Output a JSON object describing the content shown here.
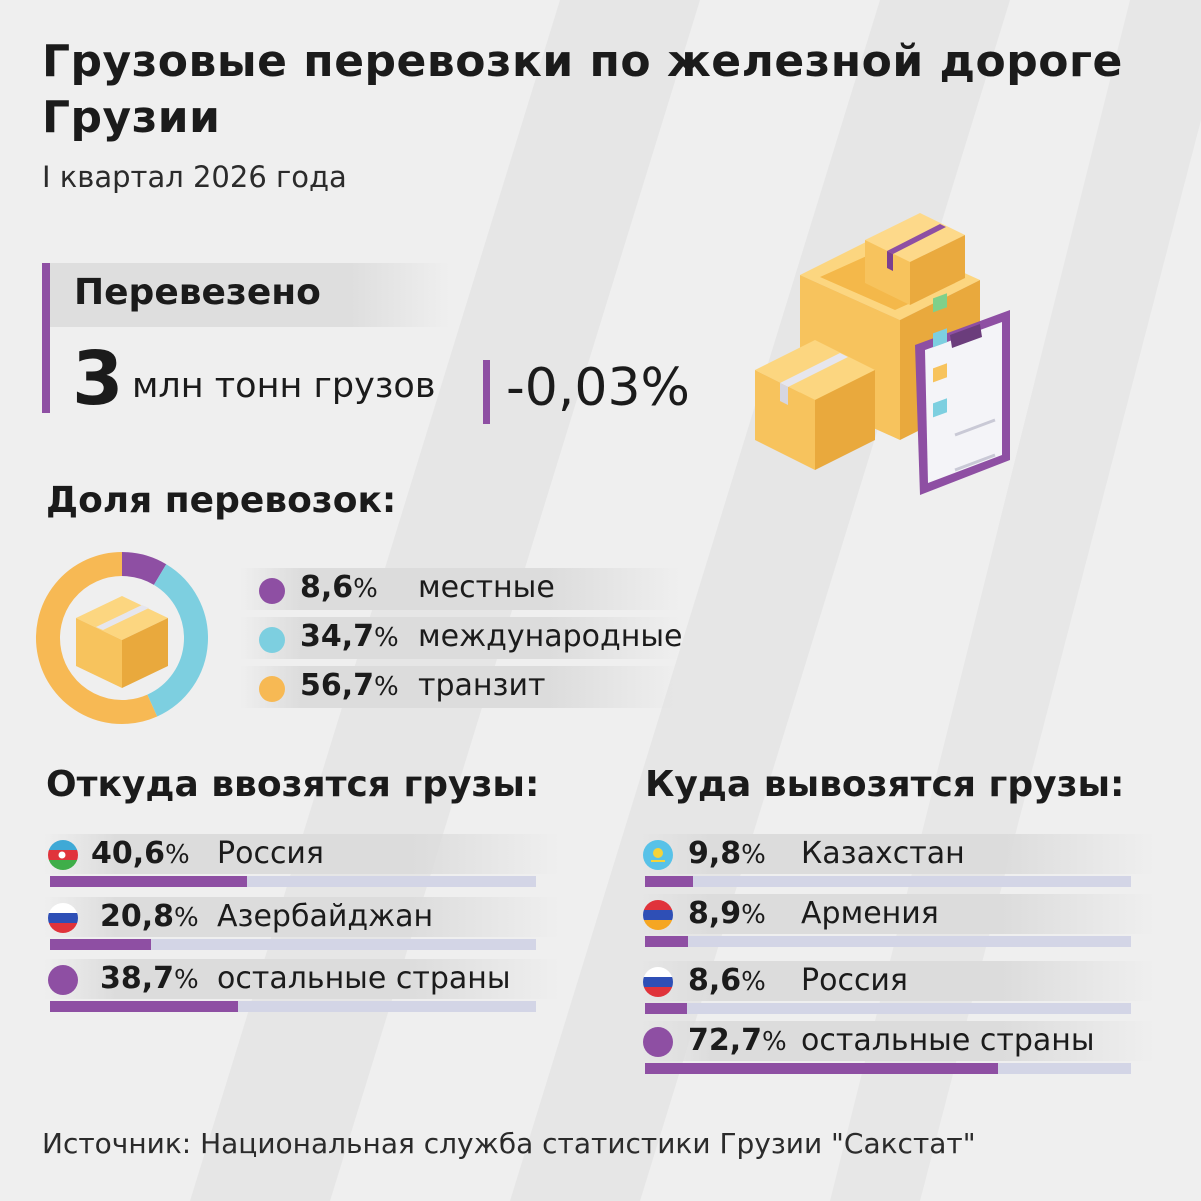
{
  "header": {
    "title": "Грузовые перевозки по железной дороге Грузии",
    "subtitle": "I квартал 2026 года"
  },
  "transported": {
    "label": "Перевезено",
    "value": "3",
    "unit": "млн тонн грузов",
    "change": "-0,03%"
  },
  "share": {
    "heading": "Доля перевозок:",
    "items": [
      {
        "value": "8,6",
        "suffix": "%",
        "label": "местные",
        "color": "#8e4fa3"
      },
      {
        "value": "34,7",
        "suffix": "%",
        "label": "международные",
        "color": "#7dcfe0"
      },
      {
        "value": "56,7",
        "suffix": "%",
        "label": "транзит",
        "color": "#f7b954"
      }
    ]
  },
  "imports": {
    "heading": "Откуда ввозятся грузы:",
    "items": [
      {
        "value": "40,6",
        "suffix": "%",
        "label": "Россия",
        "flag": "azerbaijan"
      },
      {
        "value": "20,8",
        "suffix": "%",
        "label": "Азербайджан",
        "flag": "russia"
      },
      {
        "value": "38,7",
        "suffix": "%",
        "label": "остальные страны",
        "flag": "other"
      }
    ]
  },
  "exports": {
    "heading": "Куда вывозятся грузы:",
    "items": [
      {
        "value": "9,8",
        "suffix": "%",
        "label": "Казахстан",
        "flag": "kazakhstan"
      },
      {
        "value": "8,9",
        "suffix": "%",
        "label": "Армения",
        "flag": "armenia"
      },
      {
        "value": "8,6",
        "suffix": "%",
        "label": "Россия",
        "flag": "russia"
      },
      {
        "value": "72,7",
        "suffix": "%",
        "label": "остальные страны",
        "flag": "other"
      }
    ]
  },
  "source": "Источник: Национальная служба статистики Грузии \"Сакстат\"",
  "chart_data": [
    {
      "type": "pie",
      "labels": [
        "местные",
        "международные",
        "транзит"
      ],
      "values": [
        8.6,
        34.7,
        56.7
      ],
      "colors": [
        "#8e4fa3",
        "#7dcfe0",
        "#f7b954"
      ]
    },
    {
      "type": "bar",
      "categories": [
        "Россия",
        "Азербайджан",
        "остальные страны"
      ],
      "values": [
        40.6,
        20.8,
        38.7
      ],
      "ylim": [
        0,
        100
      ]
    },
    {
      "type": "bar",
      "categories": [
        "Казахстан",
        "Армения",
        "Россия",
        "остальные страны"
      ],
      "values": [
        9.8,
        8.9,
        8.6,
        72.7
      ],
      "ylim": [
        0,
        100
      ]
    }
  ]
}
